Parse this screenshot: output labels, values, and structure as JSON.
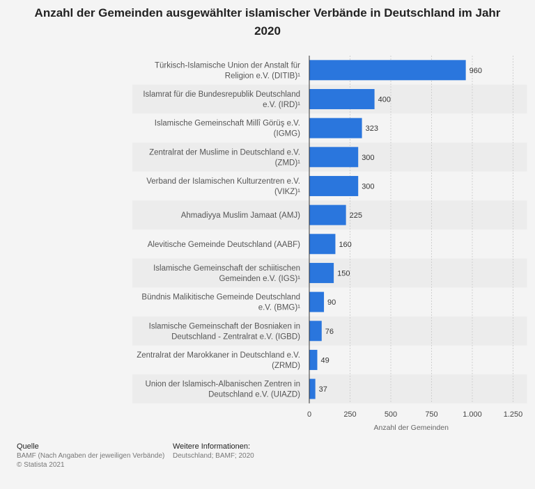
{
  "chart_data": {
    "type": "bar",
    "orientation": "horizontal",
    "title": "Anzahl der Gemeinden ausgewählter islamischer Verbände in Deutschland im Jahr 2020",
    "xlabel": "Anzahl der Gemeinden",
    "ylabel": "",
    "xlim": [
      0,
      1250
    ],
    "ticks": [
      "0",
      "250",
      "500",
      "750",
      "1.000",
      "1.250"
    ],
    "tick_values": [
      0,
      250,
      500,
      750,
      1000,
      1250
    ],
    "bar_color": "#2a76dd",
    "categories": [
      [
        "Türkisch-Islamische Union der Anstalt für",
        "Religion e.V. (DITIB)¹"
      ],
      [
        "Islamrat für die Bundesrepublik Deutschland",
        "e.V. (IRD)¹"
      ],
      [
        "Islamische Gemeinschaft Millî Görüş e.V.",
        "(IGMG)"
      ],
      [
        "Zentralrat der Muslime in Deutschland e.V.",
        "(ZMD)¹"
      ],
      [
        "Verband der Islamischen Kulturzentren e.V.",
        "(VIKZ)¹"
      ],
      [
        "Ahmadiyya Muslim Jamaat (AMJ)"
      ],
      [
        "Alevitische Gemeinde Deutschland (AABF)"
      ],
      [
        "Islamische Gemeinschaft der schiitischen",
        "Gemeinden e.V. (IGS)¹"
      ],
      [
        "Bündnis Malikitische Gemeinde Deutschland",
        "e.V. (BMG)¹"
      ],
      [
        "Islamische Gemeinschaft der Bosniaken in",
        "Deutschland - Zentralrat e.V. (IGBD)"
      ],
      [
        "Zentralrat der Marokkaner in Deutschland e.V.",
        "(ZRMD)"
      ],
      [
        "Union der Islamisch-Albanischen Zentren in",
        "Deutschland e.V. (UIAZD)"
      ]
    ],
    "values": [
      960,
      400,
      323,
      300,
      300,
      225,
      160,
      150,
      90,
      76,
      49,
      37
    ]
  },
  "footer": {
    "source_heading": "Quelle",
    "source_text": "BAMF (Nach Angaben der jeweiligen Verbände)",
    "copyright": "© Statista 2021",
    "info_heading": "Weitere Informationen:",
    "info_text": "Deutschland; BAMF; 2020"
  }
}
